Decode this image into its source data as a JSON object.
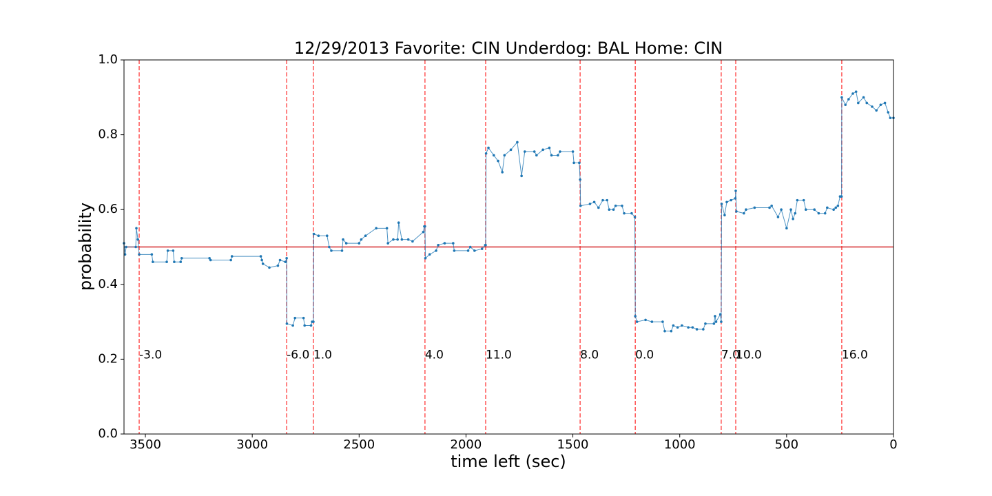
{
  "chart_data": {
    "type": "line",
    "title": "12/29/2013 Favorite: CIN Underdog: BAL Home: CIN",
    "xlabel": "time left (sec)",
    "ylabel": "probability",
    "xlim": [
      3600,
      0
    ],
    "ylim": [
      0,
      1
    ],
    "xticks": [
      3500,
      3000,
      2500,
      2000,
      1500,
      1000,
      500,
      0
    ],
    "yticks": [
      {
        "value": 0,
        "label": "0.0"
      },
      0.2,
      0.4,
      0.6,
      0.8,
      {
        "value": 1,
        "label": "1.0"
      }
    ],
    "hline": {
      "value": 0.5,
      "color": "#d62728"
    },
    "vline_color": "#ff5555",
    "annotations": [
      {
        "x": 3529,
        "y": 0.2,
        "text": "-3.0"
      },
      {
        "x": 2839,
        "y": 0.2,
        "text": "-6.0"
      },
      {
        "x": 2714,
        "y": 0.2,
        "text": "1.0"
      },
      {
        "x": 2192,
        "y": 0.2,
        "text": "4.0"
      },
      {
        "x": 1908,
        "y": 0.2,
        "text": "11.0"
      },
      {
        "x": 1466,
        "y": 0.2,
        "text": "8.0"
      },
      {
        "x": 1208,
        "y": 0.2,
        "text": "0.0"
      },
      {
        "x": 806,
        "y": 0.2,
        "text": "7.0"
      },
      {
        "x": 738,
        "y": 0.2,
        "text": "10.0"
      },
      {
        "x": 242,
        "y": 0.2,
        "text": "16.0"
      }
    ],
    "series": [
      {
        "color": "#1f77b4",
        "x": [
          3600,
          3595,
          3590,
          3545,
          3542,
          3535,
          3529,
          3470,
          3465,
          3400,
          3395,
          3370,
          3365,
          3335,
          3330,
          3200,
          3195,
          3100,
          3095,
          2960,
          2955,
          2950,
          2920,
          2880,
          2870,
          2845,
          2839,
          2838,
          2810,
          2800,
          2760,
          2755,
          2725,
          2720,
          2714,
          2712,
          2690,
          2650,
          2640,
          2630,
          2580,
          2575,
          2560,
          2500,
          2490,
          2470,
          2420,
          2370,
          2365,
          2340,
          2320,
          2315,
          2300,
          2270,
          2250,
          2200,
          2195,
          2192,
          2190,
          2170,
          2140,
          2130,
          2100,
          2060,
          2055,
          1990,
          1980,
          1960,
          1925,
          1910,
          1908,
          1906,
          1895,
          1870,
          1850,
          1830,
          1820,
          1790,
          1760,
          1740,
          1725,
          1680,
          1670,
          1640,
          1610,
          1600,
          1570,
          1560,
          1500,
          1495,
          1470,
          1466,
          1464,
          1420,
          1400,
          1380,
          1360,
          1340,
          1330,
          1310,
          1300,
          1270,
          1260,
          1225,
          1210,
          1208,
          1200,
          1160,
          1130,
          1080,
          1070,
          1040,
          1030,
          1010,
          990,
          960,
          940,
          920,
          890,
          880,
          840,
          835,
          830,
          810,
          806,
          804,
          790,
          780,
          760,
          740,
          738,
          735,
          700,
          690,
          650,
          580,
          570,
          540,
          525,
          500,
          480,
          470,
          460,
          450,
          420,
          410,
          370,
          350,
          320,
          310,
          280,
          270,
          260,
          250,
          243,
          242,
          225,
          210,
          190,
          175,
          165,
          140,
          125,
          100,
          80,
          60,
          40,
          25,
          15,
          0
        ],
        "values": [
          0.51,
          0.48,
          0.5,
          0.5,
          0.55,
          0.52,
          0.48,
          0.48,
          0.46,
          0.46,
          0.49,
          0.49,
          0.46,
          0.46,
          0.47,
          0.47,
          0.465,
          0.465,
          0.475,
          0.475,
          0.465,
          0.455,
          0.445,
          0.45,
          0.465,
          0.46,
          0.47,
          0.295,
          0.29,
          0.31,
          0.31,
          0.29,
          0.29,
          0.3,
          0.3,
          0.535,
          0.53,
          0.53,
          0.5,
          0.49,
          0.49,
          0.52,
          0.51,
          0.51,
          0.52,
          0.53,
          0.55,
          0.55,
          0.51,
          0.52,
          0.52,
          0.565,
          0.52,
          0.52,
          0.515,
          0.54,
          0.555,
          0.555,
          0.47,
          0.48,
          0.49,
          0.505,
          0.51,
          0.51,
          0.49,
          0.49,
          0.5,
          0.49,
          0.495,
          0.505,
          0.505,
          0.75,
          0.765,
          0.745,
          0.73,
          0.7,
          0.745,
          0.76,
          0.78,
          0.69,
          0.755,
          0.755,
          0.745,
          0.76,
          0.765,
          0.745,
          0.745,
          0.755,
          0.755,
          0.725,
          0.725,
          0.68,
          0.61,
          0.615,
          0.62,
          0.605,
          0.625,
          0.625,
          0.6,
          0.6,
          0.61,
          0.61,
          0.59,
          0.59,
          0.58,
          0.315,
          0.3,
          0.305,
          0.3,
          0.3,
          0.275,
          0.275,
          0.29,
          0.285,
          0.29,
          0.285,
          0.285,
          0.28,
          0.28,
          0.295,
          0.295,
          0.315,
          0.3,
          0.32,
          0.3,
          0.615,
          0.585,
          0.62,
          0.625,
          0.63,
          0.65,
          0.595,
          0.59,
          0.6,
          0.605,
          0.605,
          0.61,
          0.58,
          0.6,
          0.55,
          0.6,
          0.575,
          0.59,
          0.625,
          0.625,
          0.6,
          0.6,
          0.59,
          0.59,
          0.605,
          0.6,
          0.605,
          0.61,
          0.635,
          0.635,
          0.9,
          0.88,
          0.895,
          0.91,
          0.915,
          0.885,
          0.9,
          0.885,
          0.875,
          0.865,
          0.88,
          0.885,
          0.86,
          0.845,
          0.845
        ]
      }
    ]
  }
}
